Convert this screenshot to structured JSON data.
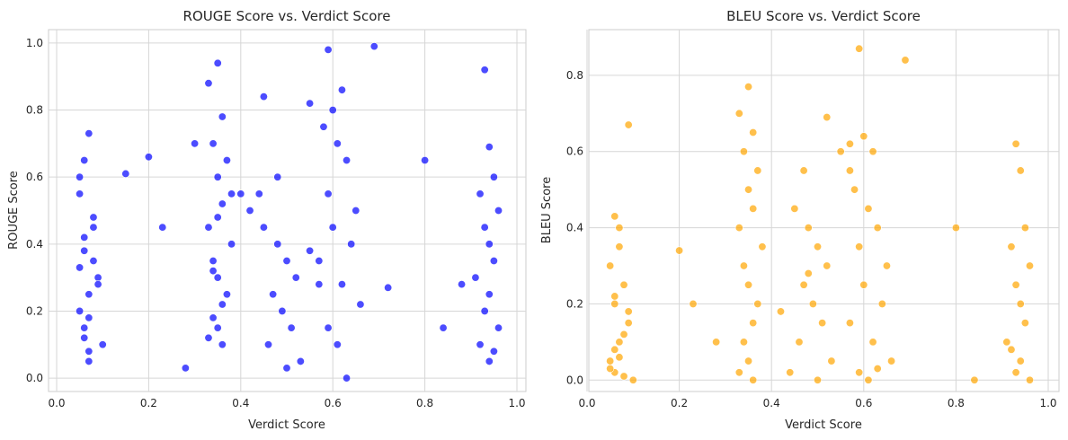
{
  "chart_data": [
    {
      "type": "scatter",
      "title": "ROUGE Score vs. Verdict Score",
      "xlabel": "Verdict Score",
      "ylabel": "ROUGE Score",
      "xlim": [
        -0.0,
        1.0
      ],
      "ylim": [
        -0.04,
        1.04
      ],
      "xticks": [
        "0.0",
        "0.2",
        "0.4",
        "0.6",
        "0.8",
        "1.0"
      ],
      "yticks": [
        "0.0",
        "0.2",
        "0.4",
        "0.6",
        "0.8",
        "1.0"
      ],
      "grid": true,
      "legend": "none",
      "color": "#0000ff",
      "x": [
        0.06,
        0.07,
        0.05,
        0.08,
        0.06,
        0.09,
        0.07,
        0.05,
        0.06,
        0.1,
        0.07,
        0.08,
        0.06,
        0.05,
        0.09,
        0.07,
        0.06,
        0.08,
        0.05,
        0.07,
        0.33,
        0.35,
        0.36,
        0.34,
        0.37,
        0.35,
        0.36,
        0.33,
        0.38,
        0.34,
        0.35,
        0.37,
        0.36,
        0.34,
        0.35,
        0.33,
        0.36,
        0.38,
        0.35,
        0.34,
        0.45,
        0.48,
        0.5,
        0.52,
        0.47,
        0.49,
        0.51,
        0.46,
        0.53,
        0.44,
        0.5,
        0.48,
        0.55,
        0.42,
        0.57,
        0.6,
        0.62,
        0.58,
        0.61,
        0.63,
        0.59,
        0.65,
        0.6,
        0.64,
        0.57,
        0.62,
        0.66,
        0.59,
        0.61,
        0.63,
        0.93,
        0.94,
        0.95,
        0.92,
        0.96,
        0.93,
        0.94,
        0.95,
        0.91,
        0.94,
        0.93,
        0.96,
        0.92,
        0.95,
        0.94,
        0.15,
        0.2,
        0.23,
        0.28,
        0.72,
        0.8,
        0.84,
        0.88,
        0.69,
        0.59,
        0.3,
        0.4,
        0.55,
        0.45
      ],
      "y": [
        0.65,
        0.73,
        0.55,
        0.45,
        0.38,
        0.3,
        0.25,
        0.2,
        0.15,
        0.1,
        0.05,
        0.48,
        0.42,
        0.33,
        0.28,
        0.18,
        0.12,
        0.35,
        0.6,
        0.08,
        0.88,
        0.94,
        0.78,
        0.7,
        0.65,
        0.6,
        0.52,
        0.45,
        0.4,
        0.35,
        0.3,
        0.25,
        0.22,
        0.18,
        0.15,
        0.12,
        0.1,
        0.55,
        0.48,
        0.32,
        0.45,
        0.4,
        0.35,
        0.3,
        0.25,
        0.2,
        0.15,
        0.1,
        0.05,
        0.55,
        0.03,
        0.6,
        0.38,
        0.5,
        0.28,
        0.8,
        0.86,
        0.75,
        0.7,
        0.65,
        0.55,
        0.5,
        0.45,
        0.4,
        0.35,
        0.28,
        0.22,
        0.15,
        0.1,
        0.0,
        0.92,
        0.69,
        0.6,
        0.55,
        0.5,
        0.45,
        0.4,
        0.35,
        0.3,
        0.25,
        0.2,
        0.15,
        0.1,
        0.08,
        0.05,
        0.61,
        0.66,
        0.45,
        0.03,
        0.27,
        0.65,
        0.15,
        0.28,
        0.99,
        0.98,
        0.7,
        0.55,
        0.82,
        0.84
      ]
    },
    {
      "type": "scatter",
      "title": "BLEU Score vs. Verdict Score",
      "xlabel": "Verdict Score",
      "ylabel": "BLEU Score",
      "xlim": [
        -0.0,
        1.0
      ],
      "ylim": [
        -0.03,
        0.92
      ],
      "xticks": [
        "0.0",
        "0.2",
        "0.4",
        "0.6",
        "0.8",
        "1.0"
      ],
      "yticks": [
        "0.0",
        "0.2",
        "0.4",
        "0.6",
        "0.8"
      ],
      "grid": true,
      "legend": "none",
      "color": "#ffa500",
      "x": [
        0.06,
        0.07,
        0.05,
        0.08,
        0.06,
        0.09,
        0.07,
        0.05,
        0.06,
        0.1,
        0.07,
        0.08,
        0.06,
        0.05,
        0.09,
        0.07,
        0.06,
        0.08,
        0.33,
        0.35,
        0.36,
        0.34,
        0.37,
        0.35,
        0.36,
        0.33,
        0.38,
        0.34,
        0.35,
        0.37,
        0.36,
        0.34,
        0.35,
        0.33,
        0.36,
        0.45,
        0.48,
        0.5,
        0.52,
        0.47,
        0.49,
        0.51,
        0.46,
        0.53,
        0.44,
        0.5,
        0.48,
        0.55,
        0.42,
        0.57,
        0.6,
        0.62,
        0.58,
        0.61,
        0.63,
        0.59,
        0.65,
        0.6,
        0.64,
        0.57,
        0.62,
        0.66,
        0.59,
        0.61,
        0.63,
        0.93,
        0.94,
        0.95,
        0.92,
        0.96,
        0.93,
        0.94,
        0.95,
        0.91,
        0.94,
        0.93,
        0.96,
        0.92,
        0.09,
        0.2,
        0.23,
        0.28,
        0.8,
        0.84,
        0.59,
        0.69,
        0.52,
        0.57,
        0.47
      ],
      "y": [
        0.43,
        0.4,
        0.3,
        0.25,
        0.2,
        0.15,
        0.1,
        0.05,
        0.02,
        0.0,
        0.35,
        0.12,
        0.08,
        0.03,
        0.18,
        0.06,
        0.22,
        0.01,
        0.7,
        0.77,
        0.65,
        0.6,
        0.55,
        0.5,
        0.45,
        0.4,
        0.35,
        0.3,
        0.25,
        0.2,
        0.15,
        0.1,
        0.05,
        0.02,
        0.0,
        0.45,
        0.4,
        0.35,
        0.3,
        0.25,
        0.2,
        0.15,
        0.1,
        0.05,
        0.02,
        0.0,
        0.28,
        0.6,
        0.18,
        0.55,
        0.64,
        0.6,
        0.5,
        0.45,
        0.4,
        0.35,
        0.3,
        0.25,
        0.2,
        0.15,
        0.1,
        0.05,
        0.02,
        0.0,
        0.03,
        0.62,
        0.55,
        0.4,
        0.35,
        0.3,
        0.25,
        0.2,
        0.15,
        0.1,
        0.05,
        0.02,
        0.0,
        0.08,
        0.67,
        0.34,
        0.2,
        0.1,
        0.4,
        0.0,
        0.87,
        0.84,
        0.69,
        0.62,
        0.55
      ]
    }
  ]
}
